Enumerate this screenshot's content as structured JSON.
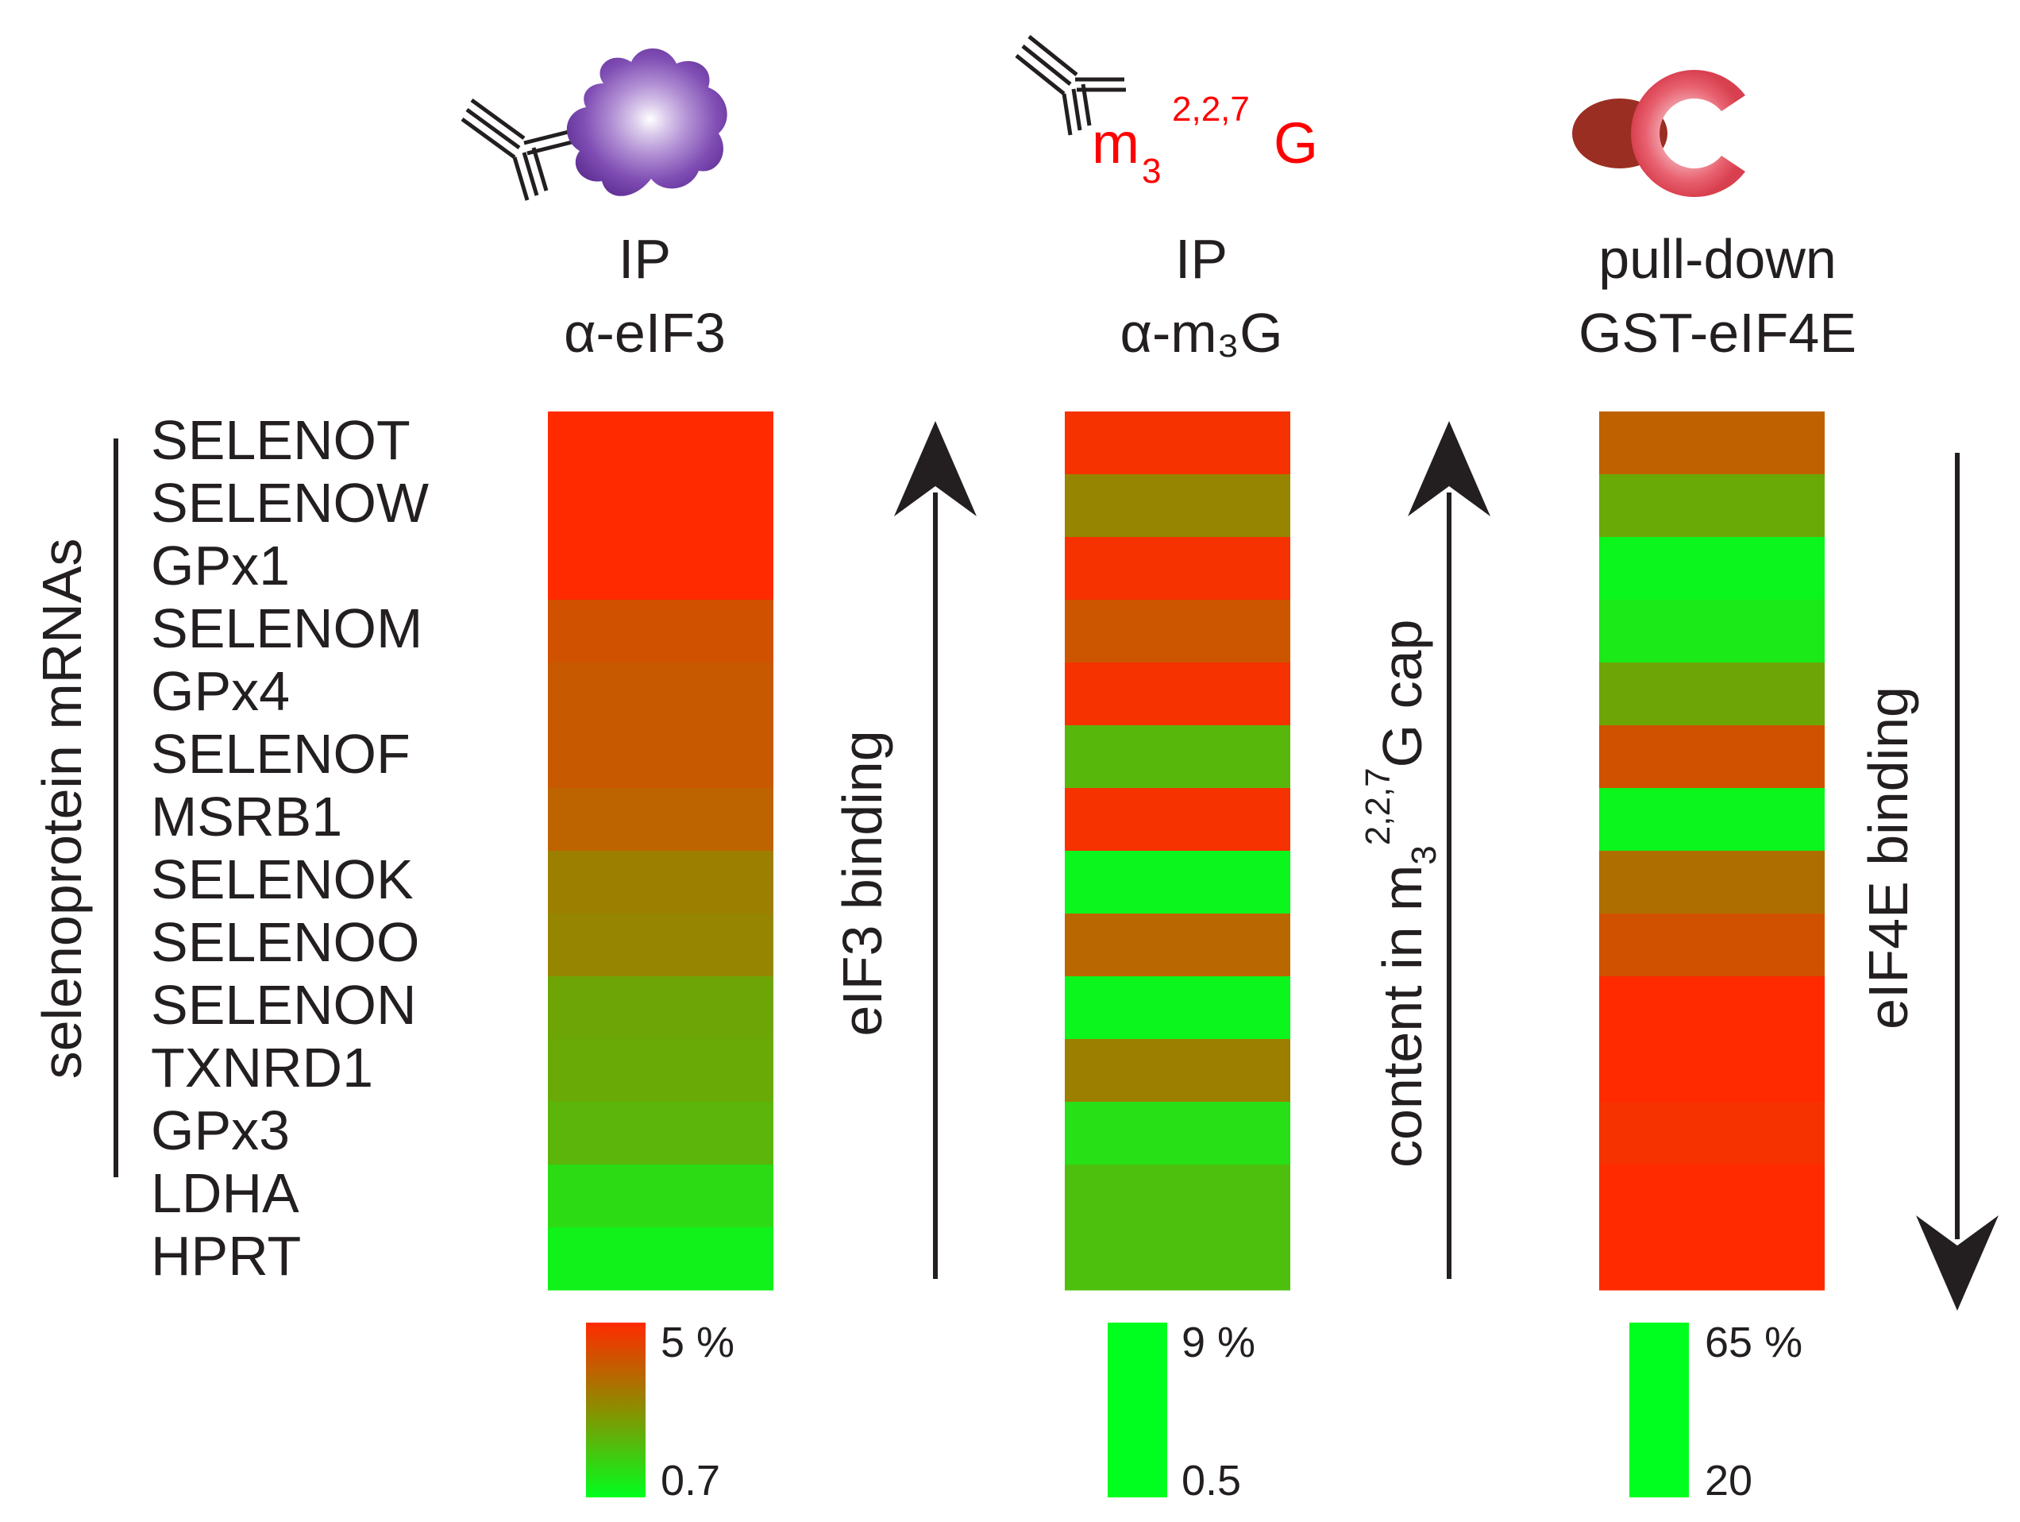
{
  "chart_data": {
    "type": "heatmap",
    "group_label": "selenoprotein mRNAs",
    "rows": [
      "SELENOT",
      "SELENOW",
      "GPx1",
      "SELENOM",
      "GPx4",
      "SELENOF",
      "MSRB1",
      "SELENOK",
      "SELENOO",
      "SELENON",
      "TXNRD1",
      "GPx3",
      "LDHA",
      "HPRT"
    ],
    "colors": {
      "high": "#ff2a00",
      "mid": "#8a8f00",
      "low": "#00ff1e"
    },
    "columns": [
      {
        "name": "eIF3",
        "title_line1": "IP",
        "title_line2": "α-eIF3",
        "arrow_label": "eIF3 binding",
        "arrow_direction": "up",
        "scale_max_label": "5 %",
        "scale_min_label": "0.7",
        "scale_gradient": true,
        "values": [
          1.0,
          1.0,
          1.0,
          0.8,
          0.76,
          0.76,
          0.72,
          0.58,
          0.55,
          0.4,
          0.38,
          0.33,
          0.16,
          0.06
        ]
      },
      {
        "name": "m3G",
        "title_line1": "IP",
        "title_line2": "α-m₃G",
        "arrow_label": "content in m3 2,2,7 G cap",
        "arrow_label_parts": {
          "before": "content in m",
          "sub": "3",
          "sup": "2,2,7",
          "after": "G cap"
        },
        "arrow_direction": "up",
        "scale_max_label": "9 %",
        "scale_min_label": "0.5",
        "scale_gradient": false,
        "values": [
          0.96,
          0.55,
          0.96,
          0.78,
          0.96,
          0.32,
          0.96,
          0.04,
          0.7,
          0.04,
          0.58,
          0.14,
          0.28,
          0.28
        ]
      },
      {
        "name": "eIF4E",
        "title_line1": "pull-down",
        "title_line2": "GST-eIF4E",
        "arrow_label": "eIF4E binding",
        "arrow_direction": "down",
        "scale_max_label": "65 %",
        "scale_min_label": "20",
        "scale_gradient": false,
        "values": [
          0.73,
          0.38,
          0.04,
          0.1,
          0.4,
          0.8,
          0.04,
          0.66,
          0.8,
          1.0,
          1.0,
          0.96,
          1.0,
          1.0
        ]
      }
    ]
  },
  "icons": {
    "col1": "antibody-with-eif3-complex",
    "col2": "antibody-with-m3g-cap",
    "col2_cap": {
      "base": "m",
      "sub": "3",
      "sup": "2,2,7",
      "tail": "G",
      "color": "#ff0000"
    },
    "col3": "gst-eif4e-fusion"
  }
}
